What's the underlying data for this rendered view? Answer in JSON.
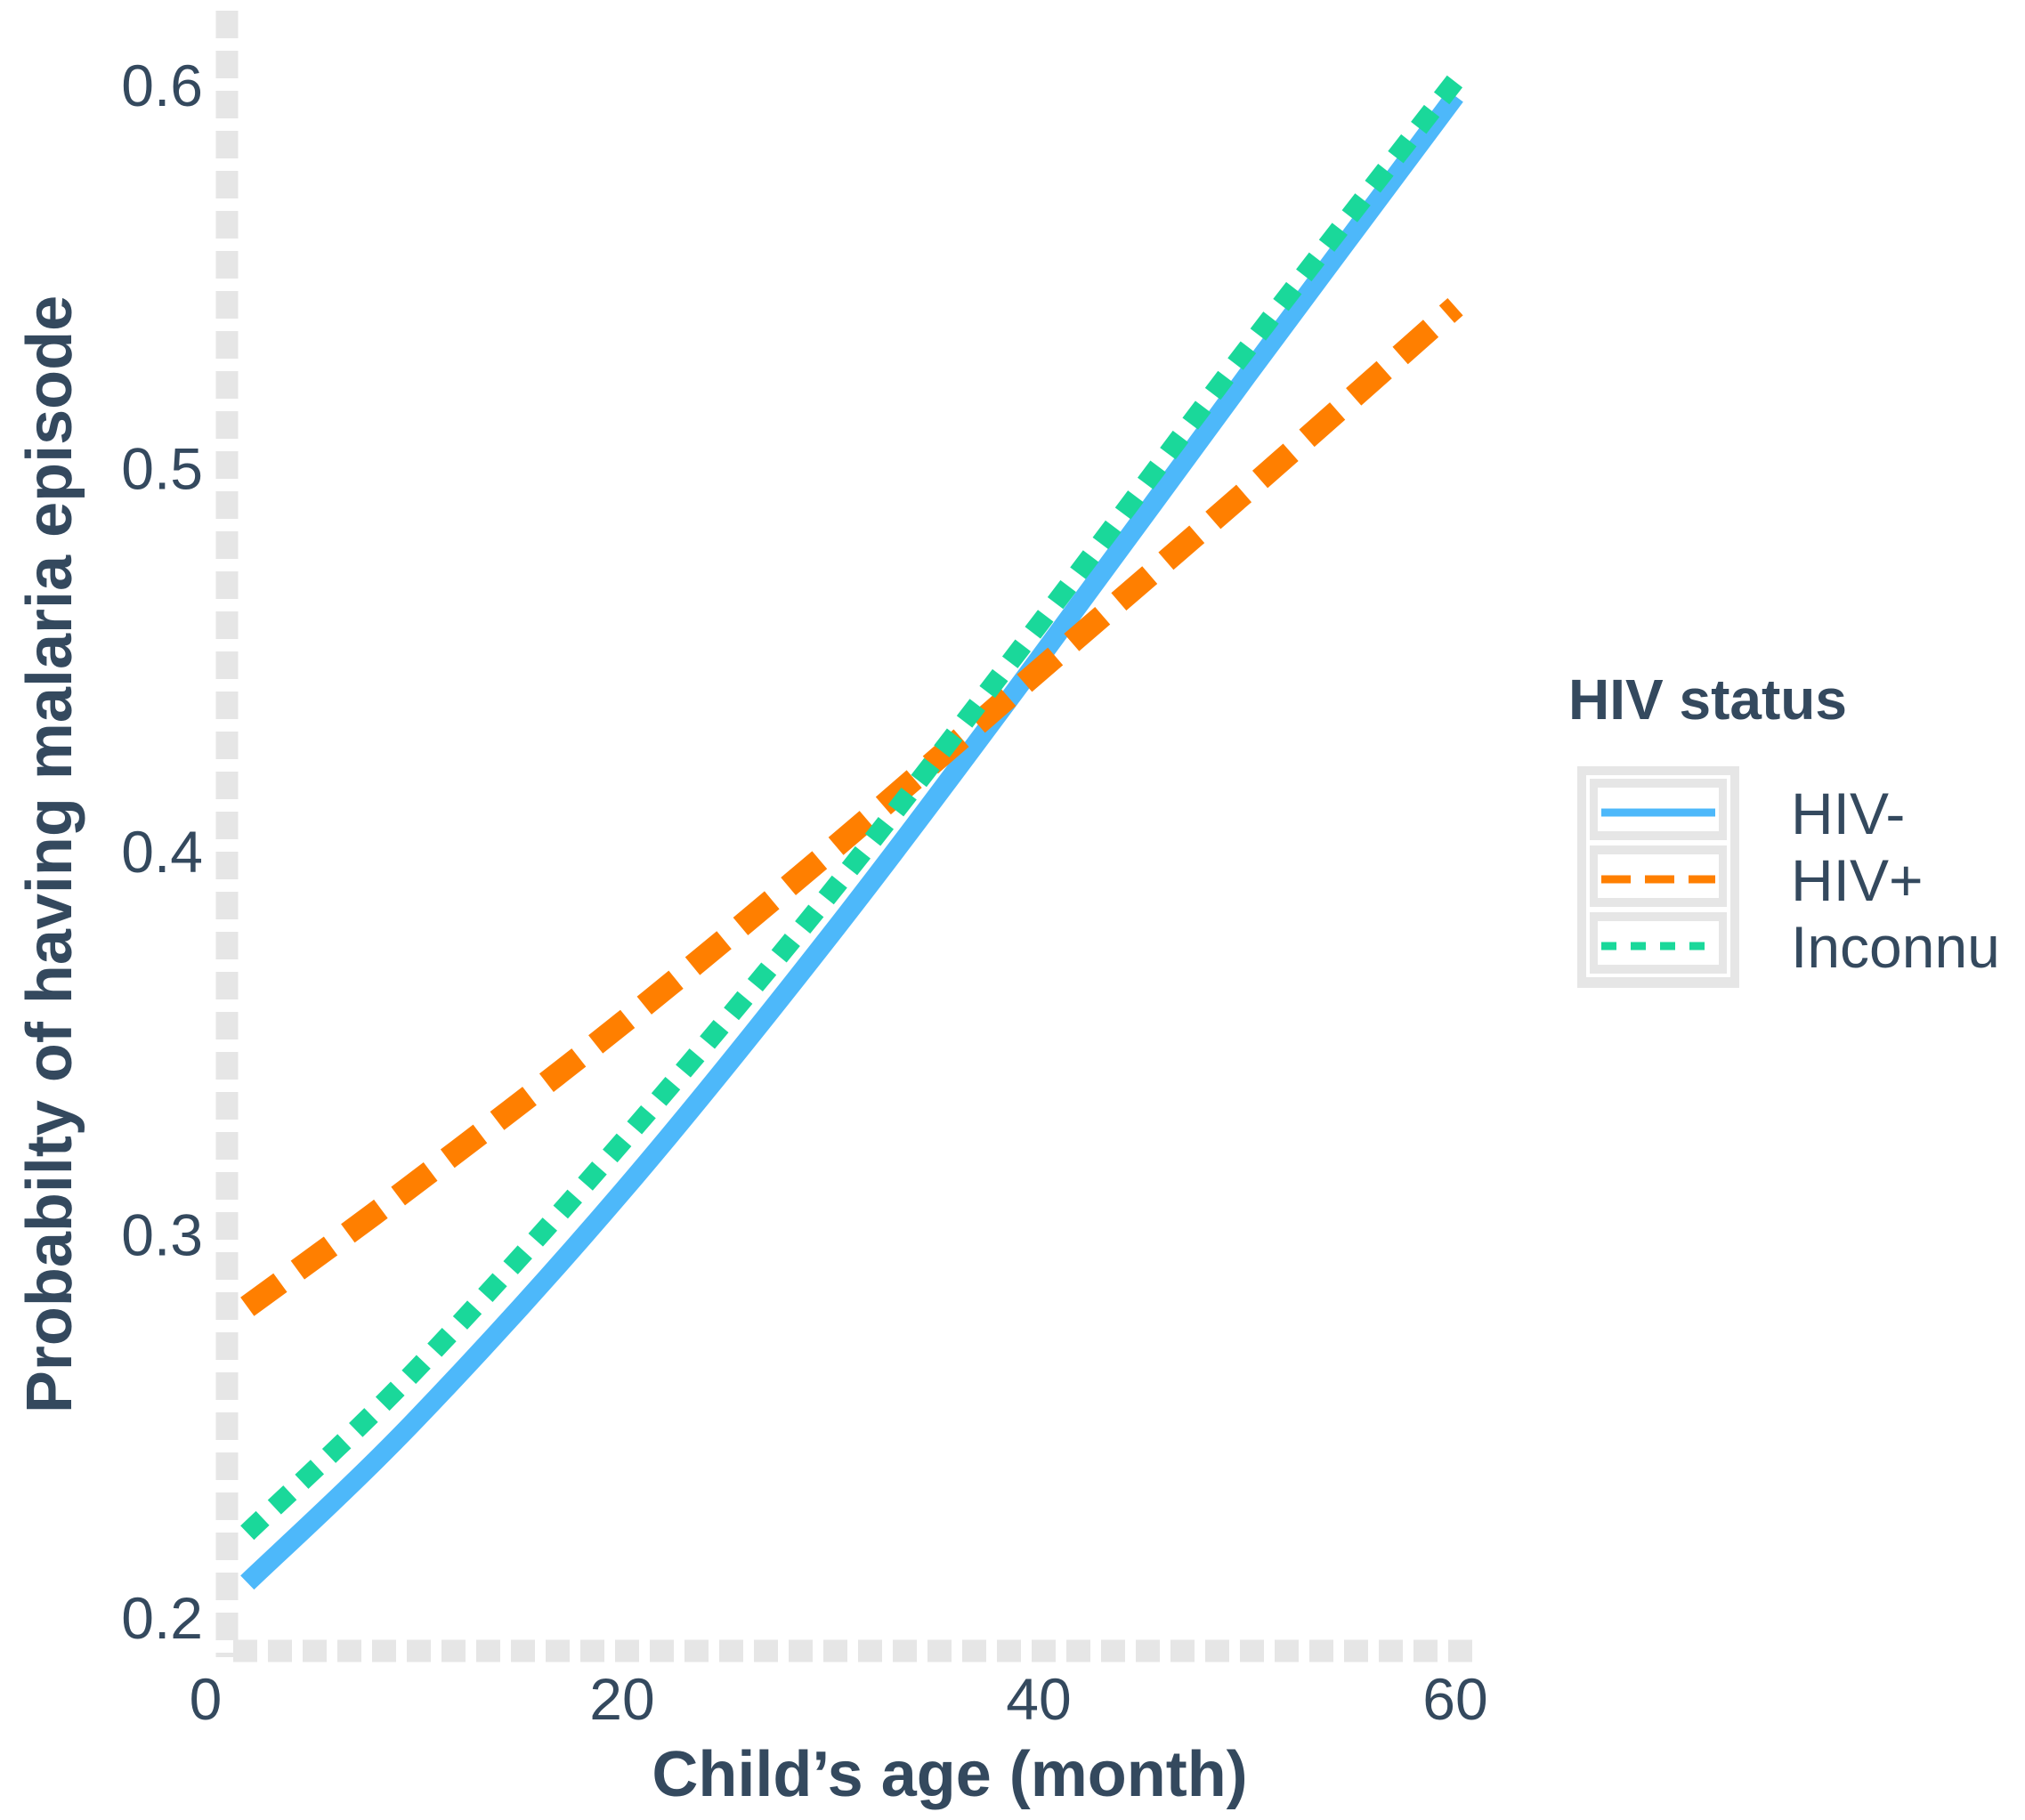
{
  "chart_data": {
    "type": "line",
    "title": "",
    "xlabel": "Child’s age (month)",
    "ylabel": "Probabilty of having malaria episode",
    "xlim": [
      0,
      60
    ],
    "ylim": [
      0.2,
      0.6
    ],
    "xticks": [
      0,
      20,
      40,
      60
    ],
    "xtick_labels": [
      "0",
      "20",
      "40",
      "60"
    ],
    "yticks": [
      0.2,
      0.3,
      0.4,
      0.5,
      0.6
    ],
    "ytick_labels": [
      "0.2",
      "0.3",
      "0.4",
      "0.5",
      "0.6"
    ],
    "grid": false,
    "legend": {
      "title": "HIV status",
      "placement": "right"
    },
    "x": [
      2,
      10,
      20,
      30,
      40,
      50,
      60
    ],
    "series": [
      {
        "name": "HIV-",
        "style": "solid",
        "color": "#4db8fa",
        "values": [
          0.209,
          0.251,
          0.311,
          0.378,
          0.45,
          0.524,
          0.597
        ]
      },
      {
        "name": "HIV+",
        "style": "dashed",
        "color": "#ff7f00",
        "values": [
          0.281,
          0.313,
          0.355,
          0.4,
          0.447,
          0.494,
          0.542
        ]
      },
      {
        "name": "Inconnu",
        "style": "dotted",
        "color": "#1ad89a",
        "values": [
          0.222,
          0.264,
          0.324,
          0.389,
          0.459,
          0.531,
          0.601
        ]
      }
    ]
  }
}
